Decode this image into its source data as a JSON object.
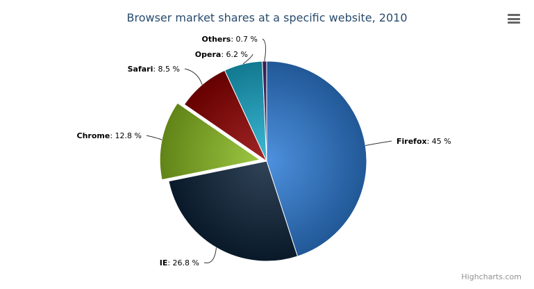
{
  "chart_data": {
    "type": "pie",
    "title": "Browser market shares at a specific website, 2010",
    "unit": "%",
    "slices": [
      {
        "name": "Firefox",
        "value": 45.0,
        "color": "#2f7ed8",
        "sliced": false
      },
      {
        "name": "IE",
        "value": 26.8,
        "color": "#0d233a",
        "sliced": false
      },
      {
        "name": "Chrome",
        "value": 12.8,
        "color": "#8bbc21",
        "sliced": true
      },
      {
        "name": "Safari",
        "value": 8.5,
        "color": "#910000",
        "sliced": false
      },
      {
        "name": "Opera",
        "value": 6.2,
        "color": "#1aadce",
        "sliced": false
      },
      {
        "name": "Others",
        "value": 0.7,
        "color": "#492970",
        "sliced": false
      }
    ]
  },
  "credits": "Highcharts.com",
  "menu_icon": "hamburger-menu-icon"
}
